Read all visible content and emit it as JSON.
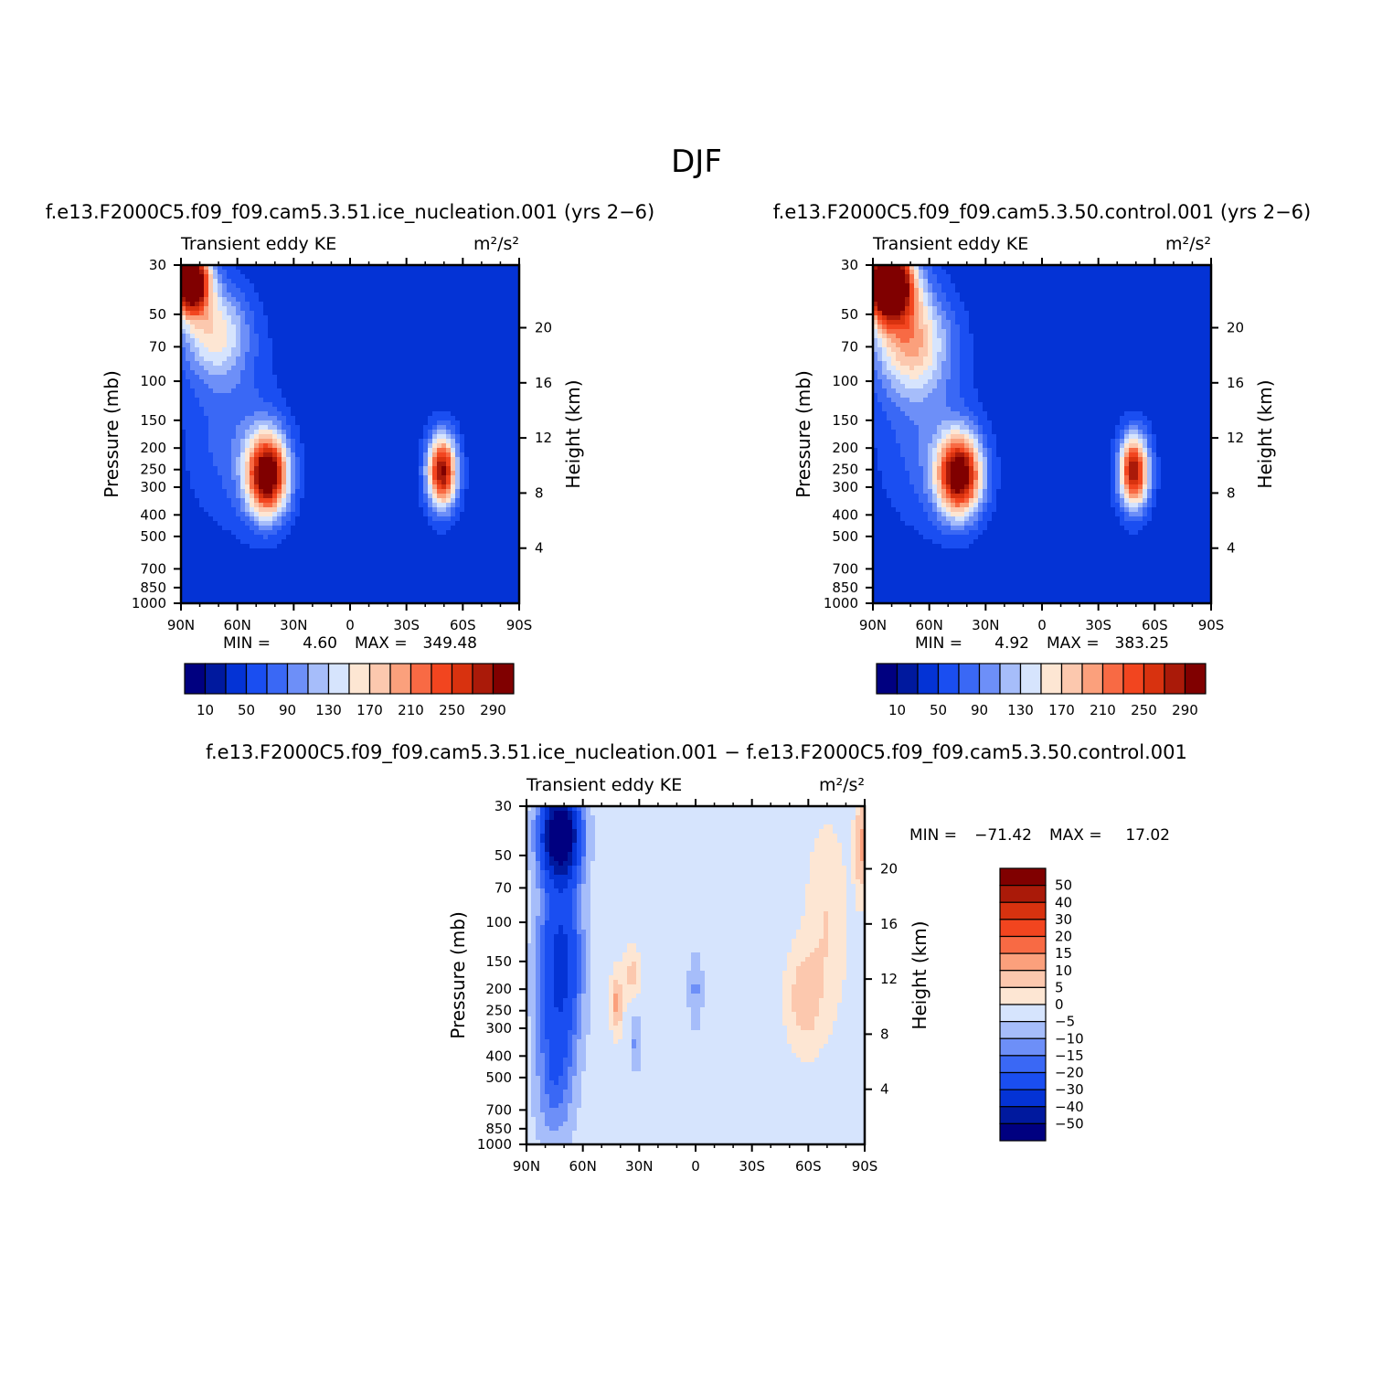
{
  "figure_title": "DJF",
  "palettes": {
    "full": [
      "#000080",
      "#00199e",
      "#0433d5",
      "#1a4ef1",
      "#3a68f5",
      "#6d8ff8",
      "#a6bdfa",
      "#d6e4fd",
      "#fde6d3",
      "#fcc8ae",
      "#fba07c",
      "#f86a44",
      "#f2451f",
      "#d8320f",
      "#aa1a09",
      "#800000"
    ],
    "diff": [
      "#000080",
      "#00199e",
      "#0433d5",
      "#1a4ef1",
      "#3a68f5",
      "#6d8ff8",
      "#a6bdfa",
      "#d6e4fd",
      "#fde6d3",
      "#fcc8ae",
      "#fba07c",
      "#f86a44",
      "#f2451f",
      "#d8320f",
      "#aa1a09",
      "#800000"
    ]
  },
  "chart_data": [
    {
      "id": "case",
      "type": "heatmap",
      "title": "f.e13.F2000C5.f09_f09.cam5.3.51.ice_nucleation.001 (yrs 2−6)",
      "var_label": "Transient eddy KE",
      "units": "m²/s²",
      "ylabel": "Pressure (mb)",
      "y2label": "Height (km)",
      "x_ticks": [
        "90N",
        "60N",
        "30N",
        "0",
        "30S",
        "60S",
        "90S"
      ],
      "p_ticks": [
        "30",
        "50",
        "70",
        "100",
        "150",
        "200",
        "250",
        "300",
        "400",
        "500",
        "700",
        "850",
        "1000"
      ],
      "p_values": [
        30,
        50,
        70,
        100,
        150,
        200,
        250,
        300,
        400,
        500,
        700,
        850,
        1000
      ],
      "z_ticks": [
        "20",
        "16",
        "12",
        "8",
        "4"
      ],
      "z_values": [
        20,
        16,
        12,
        8,
        4
      ],
      "stats": {
        "min_label": "MIN =",
        "min": "4.60",
        "max_label": "MAX =",
        "max": "349.48"
      },
      "colorbar_labels": [
        "10",
        "50",
        "90",
        "130",
        "170",
        "210",
        "250",
        "290"
      ],
      "features": [
        {
          "lat": 85,
          "p": 35,
          "amp": 340,
          "slat": 10,
          "sp": 0.35
        },
        {
          "lat": 72,
          "p": 60,
          "amp": 120,
          "slat": 18,
          "sp": 0.5
        },
        {
          "lat": 44,
          "p": 265,
          "amp": 290,
          "slat": 11,
          "sp": 0.42
        },
        {
          "lat": -49,
          "p": 255,
          "amp": 260,
          "slat": 8,
          "sp": 0.38
        },
        {
          "lat": 62,
          "p": 180,
          "amp": 45,
          "slat": 25,
          "sp": 0.9
        }
      ],
      "base": 35
    },
    {
      "id": "control",
      "type": "heatmap",
      "title": "f.e13.F2000C5.f09_f09.cam5.3.50.control.001 (yrs 2−6)",
      "var_label": "Transient eddy KE",
      "units": "m²/s²",
      "ylabel": "Pressure (mb)",
      "y2label": "Height (km)",
      "x_ticks": [
        "90N",
        "60N",
        "30N",
        "0",
        "30S",
        "60S",
        "90S"
      ],
      "p_ticks": [
        "30",
        "50",
        "70",
        "100",
        "150",
        "200",
        "250",
        "300",
        "400",
        "500",
        "700",
        "850",
        "1000"
      ],
      "p_values": [
        30,
        50,
        70,
        100,
        150,
        200,
        250,
        300,
        400,
        500,
        700,
        850,
        1000
      ],
      "z_ticks": [
        "20",
        "16",
        "12",
        "8",
        "4"
      ],
      "z_values": [
        20,
        16,
        12,
        8,
        4
      ],
      "stats": {
        "min_label": "MIN =",
        "min": "4.92",
        "max_label": "MAX =",
        "max": "383.25"
      },
      "colorbar_labels": [
        "10",
        "50",
        "90",
        "130",
        "170",
        "210",
        "250",
        "290"
      ],
      "features": [
        {
          "lat": 82,
          "p": 36,
          "amp": 380,
          "slat": 13,
          "sp": 0.38
        },
        {
          "lat": 70,
          "p": 65,
          "amp": 150,
          "slat": 20,
          "sp": 0.55
        },
        {
          "lat": 44,
          "p": 265,
          "amp": 280,
          "slat": 12,
          "sp": 0.42
        },
        {
          "lat": -49,
          "p": 255,
          "amp": 255,
          "slat": 8,
          "sp": 0.38
        },
        {
          "lat": 62,
          "p": 180,
          "amp": 45,
          "slat": 25,
          "sp": 0.9
        }
      ],
      "base": 35
    },
    {
      "id": "difference",
      "type": "heatmap",
      "title": "f.e13.F2000C5.f09_f09.cam5.3.51.ice_nucleation.001 − f.e13.F2000C5.f09_f09.cam5.3.50.control.001",
      "var_label": "Transient eddy KE",
      "units": "m²/s²",
      "ylabel": "Pressure (mb)",
      "y2label": "Height (km)",
      "x_ticks": [
        "90N",
        "60N",
        "30N",
        "0",
        "30S",
        "60S",
        "90S"
      ],
      "p_ticks": [
        "30",
        "50",
        "70",
        "100",
        "150",
        "200",
        "250",
        "300",
        "400",
        "500",
        "700",
        "850",
        "1000"
      ],
      "p_values": [
        30,
        50,
        70,
        100,
        150,
        200,
        250,
        300,
        400,
        500,
        700,
        850,
        1000
      ],
      "z_ticks": [
        "20",
        "16",
        "12",
        "8",
        "4"
      ],
      "z_values": [
        20,
        16,
        12,
        8,
        4
      ],
      "stats": {
        "min_label": "MIN =",
        "min": "−71.42",
        "max_label": "MAX =",
        "max": "17.02"
      },
      "colorbar_labels": [
        "50",
        "40",
        "30",
        "20",
        "15",
        "10",
        "5",
        "0",
        "−5",
        "−10",
        "−15",
        "−20",
        "−30",
        "−40",
        "−50"
      ],
      "levels": [
        -50,
        -40,
        -30,
        -20,
        -15,
        -10,
        -5,
        0,
        5,
        10,
        15,
        20,
        30,
        40,
        50
      ],
      "features": [
        {
          "lat": 72,
          "p": 40,
          "amp": -65,
          "slat": 10,
          "sp": 0.45
        },
        {
          "lat": 72,
          "p": 150,
          "amp": -32,
          "slat": 11,
          "sp": 0.9
        },
        {
          "lat": 75,
          "p": 500,
          "amp": -14,
          "slat": 10,
          "sp": 0.7
        },
        {
          "lat": 42,
          "p": 230,
          "amp": 14,
          "slat": 3,
          "sp": 0.3
        },
        {
          "lat": 34,
          "p": 170,
          "amp": 9,
          "slat": 4,
          "sp": 0.25
        },
        {
          "lat": 32,
          "p": 350,
          "amp": -9,
          "slat": 3,
          "sp": 0.3
        },
        {
          "lat": 0,
          "p": 200,
          "amp": -9,
          "slat": 4,
          "sp": 0.4
        },
        {
          "lat": -58,
          "p": 220,
          "amp": 11,
          "slat": 9,
          "sp": 0.5
        },
        {
          "lat": -70,
          "p": 100,
          "amp": 7,
          "slat": 10,
          "sp": 0.9
        },
        {
          "lat": -88,
          "p": 45,
          "amp": 14,
          "slat": 3,
          "sp": 0.5
        }
      ],
      "base": -2
    }
  ]
}
